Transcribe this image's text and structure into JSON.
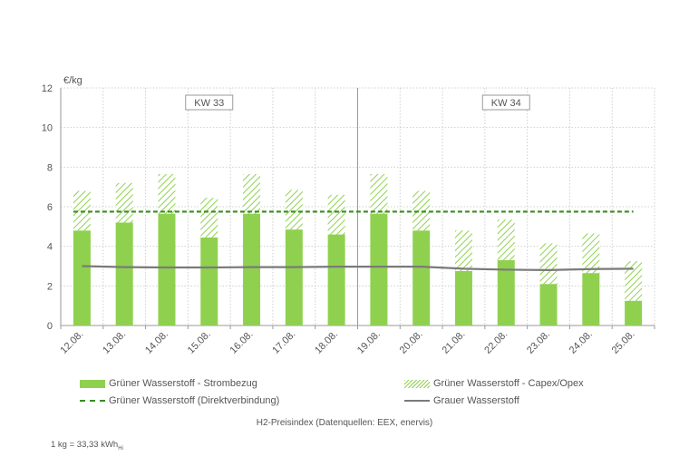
{
  "chart_data": {
    "type": "bar",
    "unit_label": "€/kg",
    "ylim": [
      0,
      12
    ],
    "yticks": [
      0,
      2,
      4,
      6,
      8,
      10,
      12
    ],
    "grid": true,
    "categories": [
      "12.08.",
      "13.08.",
      "14.08.",
      "15.08.",
      "16.08.",
      "17.08.",
      "18.08.",
      "19.08.",
      "20.08.",
      "21.08.",
      "22.08.",
      "23.08.",
      "24.08.",
      "25.08."
    ],
    "week_labels": [
      {
        "label": "KW 33",
        "from": "12.08.",
        "to": "18.08."
      },
      {
        "label": "KW 34",
        "from": "19.08.",
        "to": "25.08."
      }
    ],
    "series": [
      {
        "name": "Grüner Wasserstoff - Strombezug",
        "kind": "stacked-bar-solid",
        "color": "#8fd14f",
        "values": [
          4.8,
          5.2,
          5.65,
          4.45,
          5.65,
          4.85,
          4.6,
          5.65,
          4.8,
          2.75,
          3.3,
          2.1,
          2.65,
          1.25
        ]
      },
      {
        "name": "Grüner Wasserstoff - Capex/Opex",
        "kind": "stacked-bar-hatch",
        "color": "#8fd14f",
        "values": [
          2.0,
          2.0,
          2.0,
          2.0,
          2.0,
          2.0,
          2.0,
          2.0,
          2.0,
          2.05,
          2.05,
          2.05,
          2.0,
          2.0
        ]
      },
      {
        "name": "Grüner Wasserstoff (Direktverbindung)",
        "kind": "dashed-line",
        "color": "#3a8c1e",
        "values": [
          5.75,
          5.75,
          5.75,
          5.75,
          5.75,
          5.75,
          5.75,
          5.75,
          5.75,
          5.75,
          5.75,
          5.75,
          5.75,
          5.75
        ]
      },
      {
        "name": "Grauer Wasserstoff",
        "kind": "line",
        "color": "#7a7a7a",
        "values": [
          3.0,
          2.95,
          2.93,
          2.93,
          2.95,
          2.95,
          2.97,
          2.97,
          2.97,
          2.87,
          2.82,
          2.8,
          2.85,
          2.87
        ]
      }
    ],
    "source_note": "H2-Preisindex (Datenquellen: EEX, enervis)",
    "unit_note": "1 kg = 33,33 kWh",
    "unit_note_sub": "Hi"
  }
}
